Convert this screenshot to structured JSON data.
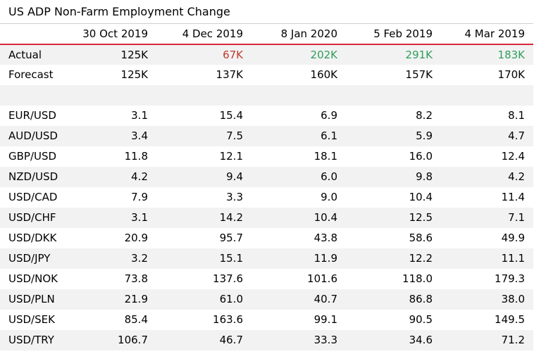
{
  "title": "US ADP Non-Farm Employment Change",
  "columns": [
    "",
    "30 Oct 2019",
    "4 Dec 2019",
    "8 Jan 2020",
    "5 Feb 2019",
    "4 Mar 2019"
  ],
  "actual": {
    "label": "Actual",
    "values": [
      "125K",
      "67K",
      "202K",
      "291K",
      "183K"
    ],
    "colors": [
      "#000000",
      "#c0392b",
      "#2e9e5b",
      "#2e9e5b",
      "#2e9e5b"
    ]
  },
  "forecast": {
    "label": "Forecast",
    "values": [
      "125K",
      "137K",
      "160K",
      "157K",
      "170K"
    ]
  },
  "pairs": [
    {
      "label": "EUR/USD",
      "values": [
        "3.1",
        "15.4",
        "6.9",
        "8.2",
        "8.1"
      ]
    },
    {
      "label": "AUD/USD",
      "values": [
        "3.4",
        "7.5",
        "6.1",
        "5.9",
        "4.7"
      ]
    },
    {
      "label": "GBP/USD",
      "values": [
        "11.8",
        "12.1",
        "18.1",
        "16.0",
        "12.4"
      ]
    },
    {
      "label": "NZD/USD",
      "values": [
        "4.2",
        "9.4",
        "6.0",
        "9.8",
        "4.2"
      ]
    },
    {
      "label": "USD/CAD",
      "values": [
        "7.9",
        "3.3",
        "9.0",
        "10.4",
        "11.4"
      ]
    },
    {
      "label": "USD/CHF",
      "values": [
        "3.1",
        "14.2",
        "10.4",
        "12.5",
        "7.1"
      ]
    },
    {
      "label": "USD/DKK",
      "values": [
        "20.9",
        "95.7",
        "43.8",
        "58.6",
        "49.9"
      ]
    },
    {
      "label": "USD/JPY",
      "values": [
        "3.2",
        "15.1",
        "11.9",
        "12.2",
        "11.1"
      ]
    },
    {
      "label": "USD/NOK",
      "values": [
        "73.8",
        "137.6",
        "101.6",
        "118.0",
        "179.3"
      ]
    },
    {
      "label": "USD/PLN",
      "values": [
        "21.9",
        "61.0",
        "40.7",
        "86.8",
        "38.0"
      ]
    },
    {
      "label": "USD/SEK",
      "values": [
        "85.4",
        "163.6",
        "99.1",
        "90.5",
        "149.5"
      ]
    },
    {
      "label": "USD/TRY",
      "values": [
        "106.7",
        "46.7",
        "33.3",
        "34.6",
        "71.2"
      ]
    }
  ]
}
